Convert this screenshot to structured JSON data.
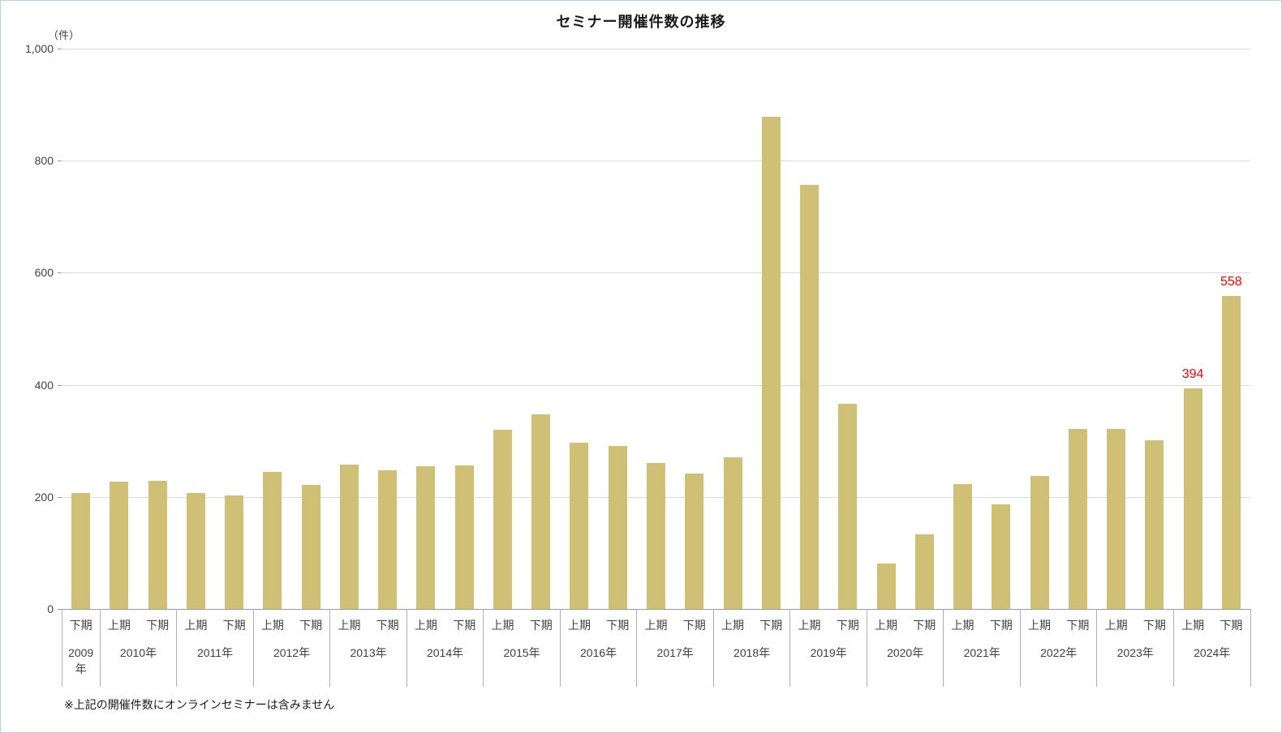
{
  "chart_data": {
    "type": "bar",
    "title": "セミナー開催件数の推移",
    "unit_label": "（件）",
    "footnote": "※上記の開催件数にオンラインセミナーは含みません",
    "ylim": [
      0,
      1000
    ],
    "yticks": [
      0,
      200,
      400,
      600,
      800,
      1000
    ],
    "ytick_labels": [
      "0",
      "200",
      "400",
      "600",
      "800",
      "1,000"
    ],
    "bar_color": "#cfc076",
    "value_label_color": "#ff0000",
    "grid": true,
    "legend": "none",
    "groups": [
      {
        "year": "2009年",
        "periods": [
          "下期"
        ],
        "values": [
          207
        ],
        "value_labels": [
          null
        ]
      },
      {
        "year": "2010年",
        "periods": [
          "上期",
          "下期"
        ],
        "values": [
          227,
          229
        ],
        "value_labels": [
          null,
          null
        ]
      },
      {
        "year": "2011年",
        "periods": [
          "上期",
          "下期"
        ],
        "values": [
          207,
          202
        ],
        "value_labels": [
          null,
          null
        ]
      },
      {
        "year": "2012年",
        "periods": [
          "上期",
          "下期"
        ],
        "values": [
          244,
          222
        ],
        "value_labels": [
          null,
          null
        ]
      },
      {
        "year": "2013年",
        "periods": [
          "上期",
          "下期"
        ],
        "values": [
          258,
          248
        ],
        "value_labels": [
          null,
          null
        ]
      },
      {
        "year": "2014年",
        "periods": [
          "上期",
          "下期"
        ],
        "values": [
          254,
          256
        ],
        "value_labels": [
          null,
          null
        ]
      },
      {
        "year": "2015年",
        "periods": [
          "上期",
          "下期"
        ],
        "values": [
          320,
          348
        ],
        "value_labels": [
          null,
          null
        ]
      },
      {
        "year": "2016年",
        "periods": [
          "上期",
          "下期"
        ],
        "values": [
          297,
          291
        ],
        "value_labels": [
          null,
          null
        ]
      },
      {
        "year": "2017年",
        "periods": [
          "上期",
          "下期"
        ],
        "values": [
          260,
          242
        ],
        "value_labels": [
          null,
          null
        ]
      },
      {
        "year": "2018年",
        "periods": [
          "上期",
          "下期"
        ],
        "values": [
          270,
          878
        ],
        "value_labels": [
          null,
          null
        ]
      },
      {
        "year": "2019年",
        "periods": [
          "上期",
          "下期"
        ],
        "values": [
          757,
          366
        ],
        "value_labels": [
          null,
          null
        ]
      },
      {
        "year": "2020年",
        "periods": [
          "上期",
          "下期"
        ],
        "values": [
          81,
          133
        ],
        "value_labels": [
          null,
          null
        ]
      },
      {
        "year": "2021年",
        "periods": [
          "上期",
          "下期"
        ],
        "values": [
          223,
          186
        ],
        "value_labels": [
          null,
          null
        ]
      },
      {
        "year": "2022年",
        "periods": [
          "上期",
          "下期"
        ],
        "values": [
          238,
          321
        ],
        "value_labels": [
          null,
          null
        ]
      },
      {
        "year": "2023年",
        "periods": [
          "上期",
          "下期"
        ],
        "values": [
          321,
          301
        ],
        "value_labels": [
          null,
          null
        ]
      },
      {
        "year": "2024年",
        "periods": [
          "上期",
          "下期"
        ],
        "values": [
          394,
          558
        ],
        "value_labels": [
          "394",
          "558"
        ]
      }
    ]
  }
}
